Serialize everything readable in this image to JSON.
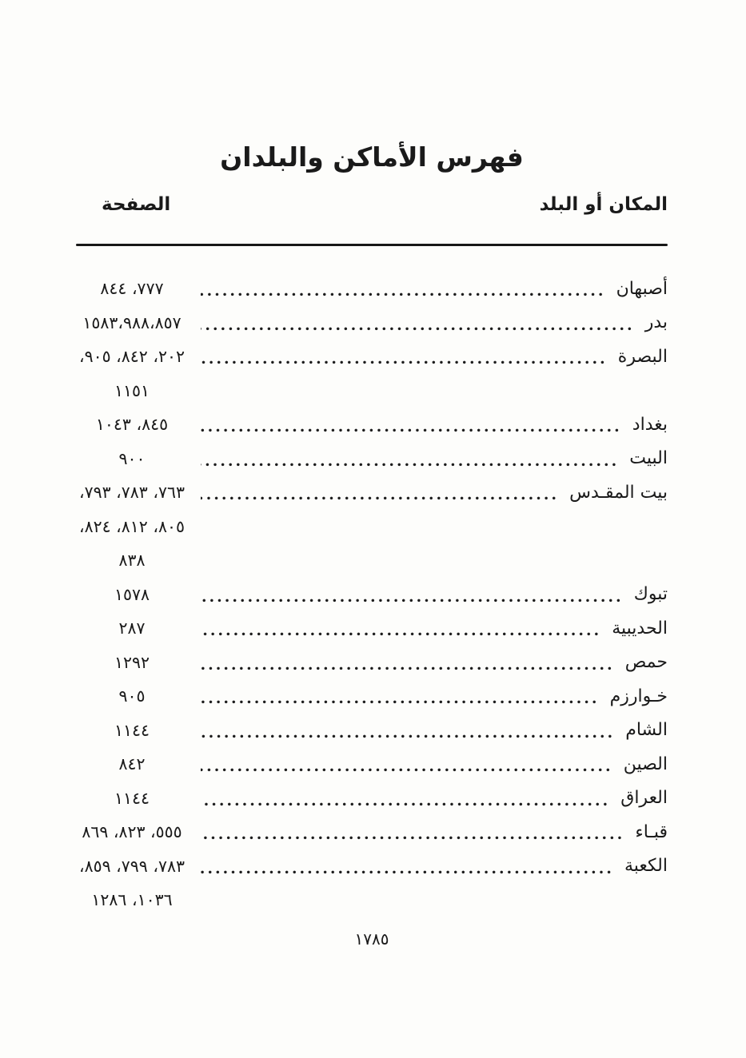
{
  "title": "فهرس الأماكن والبلدان",
  "columns": {
    "place_label": "المكان أو البلد",
    "page_label": "الصفحة"
  },
  "footer": {
    "page_number": "١٧٨٥",
    "page_number_latin": 1785
  },
  "ink_color": "#1a1a1a",
  "paper_color": "#fdfdfb",
  "index": {
    "entries": [
      {
        "name": "أصبهان",
        "pages_display": "٨٤٤ ،٧٧٧",
        "pages": [
          777,
          844
        ],
        "extra_lines": []
      },
      {
        "name": "بدر",
        "pages_display": "١٥٨٣،٩٨٨،٨٥٧",
        "pages": [
          857,
          988,
          1583
        ],
        "extra_lines": []
      },
      {
        "name": "البصرة",
        "pages_display": "،٩٠٥ ،٨٤٢ ،٢٠٢",
        "pages": [
          202,
          842,
          905,
          1151
        ],
        "extra_lines": [
          "١١٥١"
        ]
      },
      {
        "name": "بغداد",
        "pages_display": "١٠٤٣ ،٨٤٥",
        "pages": [
          845,
          1043
        ],
        "extra_lines": []
      },
      {
        "name": "البيت",
        "pages_display": "٩٠٠",
        "pages": [
          900
        ],
        "extra_lines": []
      },
      {
        "name": "بيت المقـدس",
        "pages_display": "،٧٩٣ ،٧٨٣ ،٧٦٣",
        "pages": [
          763,
          783,
          793,
          805,
          812,
          824,
          838
        ],
        "extra_lines": [
          "،٨٢٤ ،٨١٢ ،٨٠٥",
          "٨٣٨"
        ]
      },
      {
        "name": "تبوك",
        "pages_display": "١٥٧٨",
        "pages": [
          1578
        ],
        "extra_lines": []
      },
      {
        "name": "الحديبية",
        "pages_display": "٢٨٧",
        "pages": [
          287
        ],
        "extra_lines": []
      },
      {
        "name": "حمص",
        "pages_display": "١٢٩٢",
        "pages": [
          1292
        ],
        "extra_lines": []
      },
      {
        "name": "خـوارزم",
        "pages_display": "٩٠٥",
        "pages": [
          905
        ],
        "extra_lines": []
      },
      {
        "name": "الشام",
        "pages_display": "١١٤٤",
        "pages": [
          1144
        ],
        "extra_lines": []
      },
      {
        "name": "الصين",
        "pages_display": "٨٤٢",
        "pages": [
          842
        ],
        "extra_lines": []
      },
      {
        "name": "العراق",
        "pages_display": "١١٤٤",
        "pages": [
          1144
        ],
        "extra_lines": []
      },
      {
        "name": "قبـاء",
        "pages_display": "٨٦٩ ،٨٢٣ ،٥٥٥",
        "pages": [
          555,
          823,
          869
        ],
        "extra_lines": []
      },
      {
        "name": "الكعبة",
        "pages_display": "،٨٥٩ ،٧٩٩ ،٧٨٣",
        "pages": [
          783,
          799,
          859,
          1036,
          1286
        ],
        "extra_lines": [
          "١٢٨٦ ،١٠٣٦"
        ]
      }
    ]
  }
}
